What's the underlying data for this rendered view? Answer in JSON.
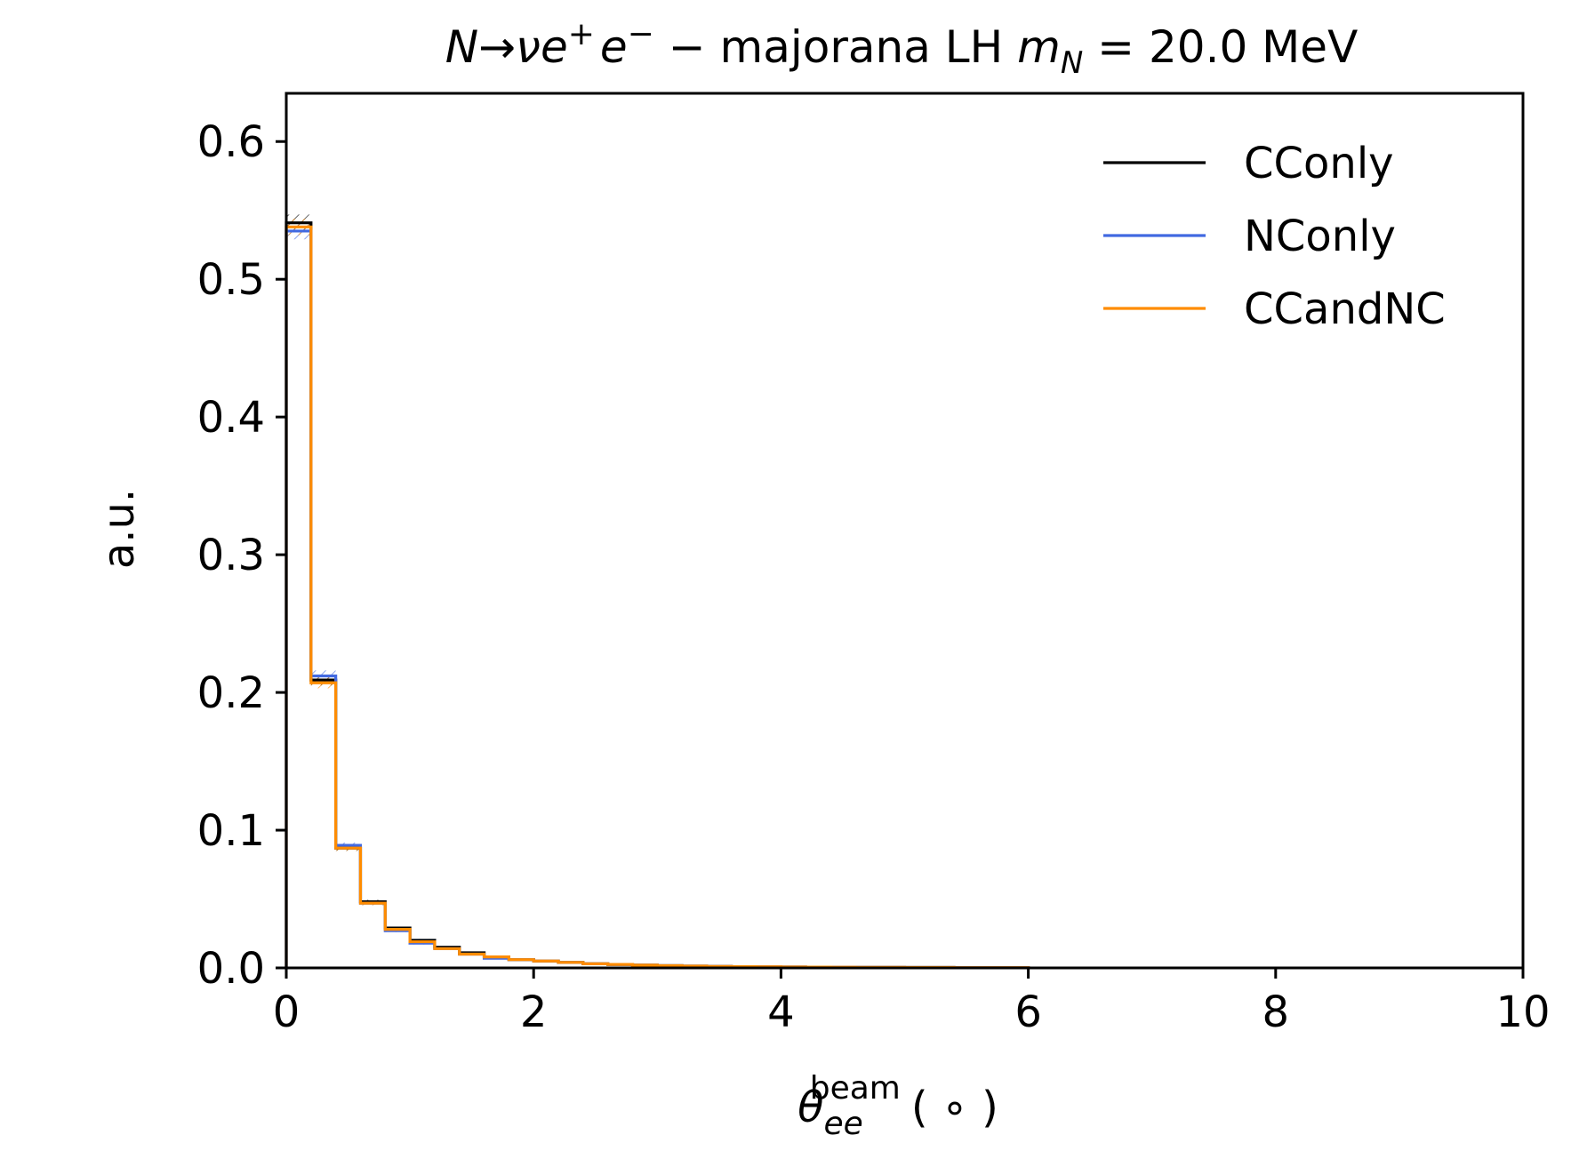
{
  "chart_data": {
    "type": "line",
    "style": "step-histogram",
    "title": "N→νe⁺e⁻ − majorana LH m_N = 20.0 MeV",
    "title_parts": {
      "decay_N": "N",
      "decay_arrow": "→",
      "decay_nu": "ν",
      "decay_e1": "e",
      "decay_e1_sup": "+",
      "decay_e2": "e",
      "decay_e2_sup": "−",
      "middle": " − majorana LH ",
      "mass_symbol": "m",
      "mass_sub": "N",
      "mass_value": " = 20.0 MeV"
    },
    "xlabel": "θ_ee^beam (°)",
    "xlabel_parts": {
      "symbol": "θ",
      "sub": "ee",
      "sup": "beam",
      "unit": "( ∘ )"
    },
    "ylabel": "a.u.",
    "xlim": [
      0,
      10
    ],
    "ylim": [
      0,
      0.635
    ],
    "xticks": [
      0,
      2,
      4,
      6,
      8,
      10
    ],
    "xtick_labels": [
      "0",
      "2",
      "4",
      "6",
      "8",
      "10"
    ],
    "yticks": [
      0.0,
      0.1,
      0.2,
      0.3,
      0.4,
      0.5,
      0.6
    ],
    "ytick_labels": [
      "0.0",
      "0.1",
      "0.2",
      "0.3",
      "0.4",
      "0.5",
      "0.6"
    ],
    "grid": false,
    "legend_position": "top-right",
    "bin_edges": [
      0,
      0.2,
      0.4,
      0.6,
      0.8,
      1.0,
      1.2,
      1.4,
      1.6,
      1.8,
      2.0,
      2.2,
      2.4,
      2.6,
      2.8,
      3.0,
      3.2,
      3.4,
      3.6,
      3.8,
      4.0,
      4.2,
      4.4,
      4.6,
      4.8,
      5.0,
      5.2,
      5.4,
      5.6,
      5.8,
      6.0
    ],
    "series": [
      {
        "name": "CConly",
        "color": "#000000",
        "values": [
          0.541,
          0.209,
          0.087,
          0.048,
          0.029,
          0.02,
          0.015,
          0.011,
          0.008,
          0.006,
          0.005,
          0.004,
          0.003,
          0.0025,
          0.002,
          0.0016,
          0.0013,
          0.0011,
          0.0009,
          0.0008,
          0.0007,
          0.0006,
          0.0005,
          0.0004,
          0.0004,
          0.0003,
          0.0003,
          0.0002,
          0.0002,
          0.0002
        ],
        "errors": [
          0.006,
          0.004,
          0.002,
          0.0015,
          0.001,
          0.001,
          0.0008,
          0.0006,
          0.0005,
          0.0004,
          0.0003,
          0.0003,
          0.0002,
          0.0002,
          0.0002,
          0.0002,
          0.0001,
          0.0001,
          0.0001,
          0.0001,
          0.0001,
          0.0001,
          0.0001,
          0.0001,
          0.0001,
          0.0001,
          0.0001,
          0.0001,
          0.0001,
          0.0001
        ]
      },
      {
        "name": "NConly",
        "color": "#4169e1",
        "values": [
          0.535,
          0.212,
          0.089,
          0.047,
          0.027,
          0.018,
          0.014,
          0.01,
          0.007,
          0.006,
          0.005,
          0.004,
          0.003,
          0.0025,
          0.002,
          0.0016,
          0.0013,
          0.0011,
          0.0009,
          0.0008,
          0.0007,
          0.0006,
          0.0005,
          0.0004,
          0.0004,
          0.0003,
          0.0003,
          0.0002,
          0.0002,
          0.0002
        ],
        "errors": [
          0.006,
          0.004,
          0.002,
          0.0015,
          0.001,
          0.001,
          0.0008,
          0.0006,
          0.0005,
          0.0004,
          0.0003,
          0.0003,
          0.0002,
          0.0002,
          0.0002,
          0.0002,
          0.0001,
          0.0001,
          0.0001,
          0.0001,
          0.0001,
          0.0001,
          0.0001,
          0.0001,
          0.0001,
          0.0001,
          0.0001,
          0.0001,
          0.0001,
          0.0001
        ]
      },
      {
        "name": "CCandNC",
        "color": "#ff8c00",
        "values": [
          0.538,
          0.207,
          0.087,
          0.047,
          0.028,
          0.019,
          0.014,
          0.01,
          0.008,
          0.006,
          0.005,
          0.004,
          0.003,
          0.0025,
          0.002,
          0.0016,
          0.0013,
          0.0011,
          0.0009,
          0.0008,
          0.0007,
          0.0006,
          0.0005,
          0.0004,
          0.0004,
          0.0003,
          0.0003,
          0.0002,
          0.0002,
          0.0002
        ],
        "errors": [
          0.006,
          0.004,
          0.002,
          0.0015,
          0.001,
          0.001,
          0.0008,
          0.0006,
          0.0005,
          0.0004,
          0.0003,
          0.0003,
          0.0002,
          0.0002,
          0.0002,
          0.0002,
          0.0001,
          0.0001,
          0.0001,
          0.0001,
          0.0001,
          0.0001,
          0.0001,
          0.0001,
          0.0001,
          0.0001,
          0.0001,
          0.0001,
          0.0001,
          0.0001
        ]
      }
    ]
  }
}
